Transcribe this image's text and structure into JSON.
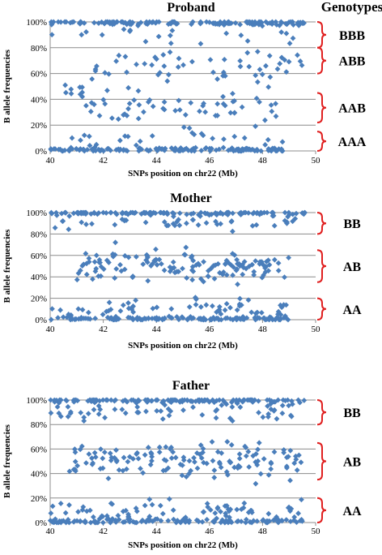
{
  "figure": {
    "genotypes_header": "Genotypes"
  },
  "chart_data": [
    {
      "type": "scatter",
      "title": "Proband",
      "xlabel": "SNPs position  on chr22 (Mb)",
      "ylabel": "B allele frequencies",
      "xlim": [
        40,
        50
      ],
      "ylim": [
        0,
        100
      ],
      "x_ticks": [
        "40",
        "42",
        "44",
        "46",
        "48",
        "50"
      ],
      "y_ticks": [
        "0%",
        "20%",
        "40%",
        "60%",
        "80%",
        "100%"
      ],
      "grid": true,
      "marker": "diamond",
      "color": "#4a7ebb",
      "bands": [
        {
          "label": "BBB",
          "range": [
            80,
            100
          ]
        },
        {
          "label": "ABB",
          "range": [
            60,
            80
          ]
        },
        {
          "label": "AAB",
          "range": [
            22,
            45
          ]
        },
        {
          "label": "AAA",
          "range": [
            0,
            15
          ]
        }
      ],
      "clusters": [
        {
          "center": 99.5,
          "spread": 1.0,
          "count": 140,
          "x_range": [
            40.0,
            49.6
          ]
        },
        {
          "center": 91,
          "spread": 4,
          "count": 18,
          "x_range": [
            40.0,
            49.5
          ]
        },
        {
          "center": 68,
          "spread": 8,
          "count": 60,
          "x_range": [
            41.5,
            49.5
          ]
        },
        {
          "center": 45,
          "spread": 4,
          "count": 8,
          "x_range": [
            40.5,
            41.3
          ]
        },
        {
          "center": 33,
          "spread": 6,
          "count": 60,
          "x_range": [
            41.2,
            49.0
          ]
        },
        {
          "center": 8,
          "spread": 4,
          "count": 25,
          "x_range": [
            40.5,
            49.0
          ]
        },
        {
          "center": 0.8,
          "spread": 0.8,
          "count": 130,
          "x_range": [
            40.0,
            49.0
          ]
        }
      ]
    },
    {
      "type": "scatter",
      "title": "Mother",
      "xlabel": "SNPs position  on chr22 (Mb)",
      "ylabel": "B allele frequencies",
      "xlim": [
        40,
        50
      ],
      "ylim": [
        0,
        100
      ],
      "x_ticks": [
        "40",
        "42",
        "44",
        "46",
        "48",
        "50"
      ],
      "y_ticks": [
        "0%",
        "20%",
        "40%",
        "60%",
        "80%",
        "100%"
      ],
      "grid": true,
      "marker": "diamond",
      "color": "#4a7ebb",
      "bands": [
        {
          "label": "BB",
          "range": [
            80,
            100
          ]
        },
        {
          "label": "AB",
          "range": [
            35,
            65
          ]
        },
        {
          "label": "AA",
          "range": [
            0,
            20
          ]
        }
      ],
      "clusters": [
        {
          "center": 99.5,
          "spread": 1.0,
          "count": 120,
          "x_range": [
            40.0,
            49.6
          ]
        },
        {
          "center": 92,
          "spread": 4,
          "count": 50,
          "x_range": [
            40.0,
            49.5
          ]
        },
        {
          "center": 50,
          "spread": 7,
          "count": 140,
          "x_range": [
            41.0,
            49.0
          ]
        },
        {
          "center": 8,
          "spread": 5,
          "count": 70,
          "x_range": [
            40.0,
            49.0
          ]
        },
        {
          "center": 1.0,
          "spread": 1.0,
          "count": 120,
          "x_range": [
            40.0,
            49.0
          ]
        }
      ]
    },
    {
      "type": "scatter",
      "title": "Father",
      "xlabel": "SNPs position  on chr22 (Mb)",
      "ylabel": "B allele frequencies",
      "xlim": [
        40,
        50
      ],
      "ylim": [
        0,
        100
      ],
      "x_ticks": [
        "40",
        "42",
        "44",
        "46",
        "48",
        "50"
      ],
      "y_ticks": [
        "0%",
        "20%",
        "40%",
        "60%",
        "80%",
        "100%"
      ],
      "grid": true,
      "marker": "diamond",
      "color": "#4a7ebb",
      "bands": [
        {
          "label": "BB",
          "range": [
            80,
            100
          ]
        },
        {
          "label": "AB",
          "range": [
            35,
            65
          ]
        },
        {
          "label": "AA",
          "range": [
            0,
            20
          ]
        }
      ],
      "clusters": [
        {
          "center": 99.5,
          "spread": 1.0,
          "count": 130,
          "x_range": [
            40.0,
            49.6
          ]
        },
        {
          "center": 91,
          "spread": 4,
          "count": 60,
          "x_range": [
            40.0,
            49.5
          ]
        },
        {
          "center": 50,
          "spread": 7,
          "count": 140,
          "x_range": [
            40.5,
            49.5
          ]
        },
        {
          "center": 8,
          "spread": 5,
          "count": 80,
          "x_range": [
            40.0,
            49.5
          ]
        },
        {
          "center": 1.0,
          "spread": 1.0,
          "count": 110,
          "x_range": [
            40.0,
            49.5
          ]
        }
      ]
    }
  ]
}
